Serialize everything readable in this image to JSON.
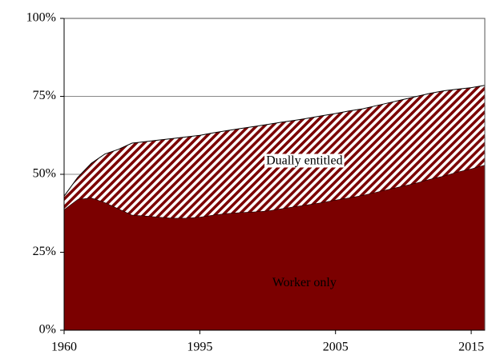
{
  "chart_data": {
    "type": "stacked_area",
    "categories": [
      "1960",
      null,
      null,
      null,
      null,
      null,
      null,
      null,
      null,
      null,
      "1995",
      null,
      null,
      null,
      null,
      null,
      null,
      null,
      null,
      null,
      "2005",
      null,
      null,
      null,
      null,
      null,
      null,
      null,
      null,
      null,
      "2015",
      null
    ],
    "series": [
      {
        "name": "Worker only",
        "color": "#7b0000",
        "hatch": false,
        "values": [
          38.7,
          42,
          42.5,
          41,
          39,
          37,
          36.7,
          36.3,
          36,
          36,
          36.3,
          37,
          37.5,
          37.8,
          38,
          38.3,
          39,
          39.7,
          40.3,
          41,
          41.8,
          42.5,
          43.3,
          44.3,
          45.3,
          46.3,
          47.3,
          48.5,
          49.5,
          50.8,
          51.8,
          53
        ]
      },
      {
        "name": "Dually entitled",
        "color": "#7b0000",
        "hatch": true,
        "values": [
          4.3,
          7,
          11,
          15.5,
          19,
          23,
          23.8,
          24.7,
          25.5,
          26,
          26.2,
          26.3,
          26.5,
          26.9,
          27.3,
          27.7,
          27.7,
          27.6,
          27.7,
          27.8,
          27.7,
          27.8,
          27.7,
          27.7,
          27.7,
          27.7,
          27.7,
          27.5,
          27.3,
          26.5,
          26,
          25.5
        ]
      }
    ],
    "ylim": [
      0,
      100
    ],
    "yticks": [
      {
        "value": 0,
        "label": "0%"
      },
      {
        "value": 25,
        "label": "25%"
      },
      {
        "value": 50,
        "label": "50%"
      },
      {
        "value": 75,
        "label": "75%"
      },
      {
        "value": 100,
        "label": "100%"
      }
    ],
    "grid": true
  }
}
